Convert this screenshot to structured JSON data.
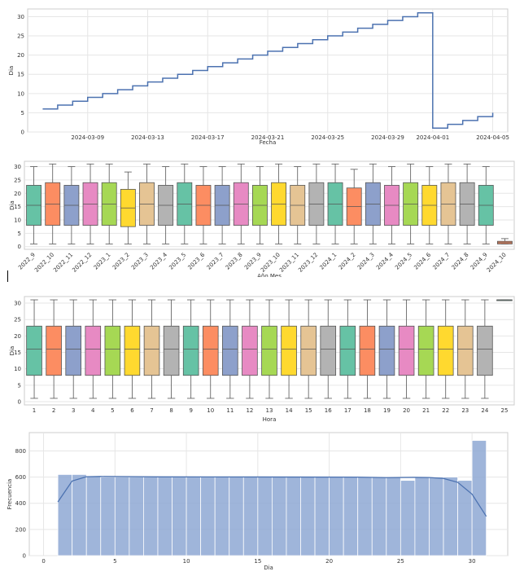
{
  "chart_data": [
    {
      "type": "line",
      "title": "",
      "xlabel": "Fecha",
      "ylabel": "Dia",
      "x_ticks": [
        "2024-03-09",
        "2024-03-13",
        "2024-03-17",
        "2024-03-21",
        "2024-03-25",
        "2024-03-29",
        "2024-04-01",
        "2024-04-05"
      ],
      "y_ticks": [
        "0",
        "5",
        "10",
        "15",
        "20",
        "25",
        "30"
      ],
      "x_range": [
        "2024-03-05",
        "2024-04-06"
      ],
      "ylim": [
        0,
        32
      ],
      "grid": true,
      "series": [
        {
          "x": [
            "2024-03-06",
            "2024-03-07",
            "2024-03-08",
            "2024-03-09",
            "2024-03-10",
            "2024-03-11",
            "2024-03-12",
            "2024-03-13",
            "2024-03-14",
            "2024-03-15",
            "2024-03-16",
            "2024-03-17",
            "2024-03-18",
            "2024-03-19",
            "2024-03-20",
            "2024-03-21",
            "2024-03-22",
            "2024-03-23",
            "2024-03-24",
            "2024-03-25",
            "2024-03-26",
            "2024-03-27",
            "2024-03-28",
            "2024-03-29",
            "2024-03-30",
            "2024-03-31",
            "2024-04-01",
            "2024-04-02",
            "2024-04-03",
            "2024-04-04",
            "2024-04-05"
          ],
          "y": [
            6,
            7,
            8,
            9,
            10,
            11,
            12,
            13,
            14,
            15,
            16,
            17,
            18,
            19,
            20,
            21,
            22,
            23,
            24,
            25,
            26,
            27,
            28,
            29,
            30,
            31,
            1,
            2,
            3,
            4,
            5
          ]
        }
      ]
    },
    {
      "type": "box",
      "title": "",
      "xlabel": "Año Mes",
      "ylabel": "Dia",
      "ylim": [
        -1,
        32
      ],
      "y_ticks": [
        "0",
        "5",
        "10",
        "15",
        "20",
        "25",
        "30"
      ],
      "grid": true,
      "categories": [
        "2022_9",
        "2022_10",
        "2022_11",
        "2022_12",
        "2023_1",
        "2023_2",
        "2023_3",
        "2023_4",
        "2023_5",
        "2023_6",
        "2023_7",
        "2023_8",
        "2023_9",
        "2023_10",
        "2023_11",
        "2023_12",
        "2024_1",
        "2024_2",
        "2024_3",
        "2024_4",
        "2024_5",
        "2024_6",
        "2024_7",
        "2024_8",
        "2024_9",
        "2024_10"
      ],
      "colors": [
        "#66c2a5",
        "#fc8d62",
        "#8da0cb",
        "#e78ac3",
        "#a6d854",
        "#ffd92f",
        "#e5c494",
        "#b3b3b3"
      ],
      "boxes": [
        {
          "min": 1,
          "q1": 8,
          "median": 15.5,
          "q3": 23,
          "max": 30
        },
        {
          "min": 1,
          "q1": 8,
          "median": 16,
          "q3": 24,
          "max": 31
        },
        {
          "min": 1,
          "q1": 8,
          "median": 15.5,
          "q3": 23,
          "max": 30
        },
        {
          "min": 1,
          "q1": 8,
          "median": 16,
          "q3": 24,
          "max": 31
        },
        {
          "min": 1,
          "q1": 8,
          "median": 16,
          "q3": 24,
          "max": 31
        },
        {
          "min": 1,
          "q1": 7.5,
          "median": 14.5,
          "q3": 21.5,
          "max": 28
        },
        {
          "min": 1,
          "q1": 8,
          "median": 16,
          "q3": 24,
          "max": 31
        },
        {
          "min": 1,
          "q1": 8,
          "median": 15.5,
          "q3": 23,
          "max": 30
        },
        {
          "min": 1,
          "q1": 8,
          "median": 16,
          "q3": 24,
          "max": 31
        },
        {
          "min": 1,
          "q1": 8,
          "median": 15.5,
          "q3": 23,
          "max": 30
        },
        {
          "min": 1,
          "q1": 8,
          "median": 15.5,
          "q3": 23,
          "max": 30
        },
        {
          "min": 1,
          "q1": 8,
          "median": 16,
          "q3": 24,
          "max": 31
        },
        {
          "min": 1,
          "q1": 8,
          "median": 15.5,
          "q3": 23,
          "max": 30
        },
        {
          "min": 1,
          "q1": 8,
          "median": 16,
          "q3": 24,
          "max": 31
        },
        {
          "min": 1,
          "q1": 8,
          "median": 15.5,
          "q3": 23,
          "max": 30
        },
        {
          "min": 1,
          "q1": 8,
          "median": 16,
          "q3": 24,
          "max": 31
        },
        {
          "min": 1,
          "q1": 8,
          "median": 16,
          "q3": 24,
          "max": 31
        },
        {
          "min": 1,
          "q1": 8,
          "median": 15,
          "q3": 22,
          "max": 29
        },
        {
          "min": 1,
          "q1": 8,
          "median": 16,
          "q3": 24,
          "max": 31
        },
        {
          "min": 1,
          "q1": 8,
          "median": 15.5,
          "q3": 23,
          "max": 30
        },
        {
          "min": 1,
          "q1": 8,
          "median": 16,
          "q3": 24,
          "max": 31
        },
        {
          "min": 1,
          "q1": 8,
          "median": 15.5,
          "q3": 23,
          "max": 30
        },
        {
          "min": 1,
          "q1": 8,
          "median": 16,
          "q3": 24,
          "max": 31
        },
        {
          "min": 1,
          "q1": 8,
          "median": 16,
          "q3": 24,
          "max": 31
        },
        {
          "min": 1,
          "q1": 8,
          "median": 15.5,
          "q3": 23,
          "max": 30
        },
        {
          "min": 1,
          "q1": 1,
          "median": 1.5,
          "q3": 2,
          "max": 3
        }
      ]
    },
    {
      "type": "box",
      "title": "",
      "xlabel": "Hora",
      "ylabel": "Dia",
      "ylim": [
        -1,
        32
      ],
      "y_ticks": [
        "0",
        "5",
        "10",
        "15",
        "20",
        "25",
        "30"
      ],
      "grid": true,
      "categories": [
        "1",
        "2",
        "3",
        "4",
        "5",
        "6",
        "7",
        "8",
        "9",
        "10",
        "11",
        "12",
        "13",
        "14",
        "15",
        "16",
        "17",
        "18",
        "19",
        "20",
        "21",
        "22",
        "23",
        "24",
        "25"
      ],
      "colors": [
        "#66c2a5",
        "#fc8d62",
        "#8da0cb",
        "#e78ac3",
        "#a6d854",
        "#ffd92f",
        "#e5c494",
        "#b3b3b3"
      ],
      "boxes": [
        {
          "min": 1,
          "q1": 8,
          "median": 16,
          "q3": 23,
          "max": 31
        },
        {
          "min": 1,
          "q1": 8,
          "median": 16,
          "q3": 23,
          "max": 31
        },
        {
          "min": 1,
          "q1": 8,
          "median": 16,
          "q3": 23,
          "max": 31
        },
        {
          "min": 1,
          "q1": 8,
          "median": 16,
          "q3": 23,
          "max": 31
        },
        {
          "min": 1,
          "q1": 8,
          "median": 16,
          "q3": 23,
          "max": 31
        },
        {
          "min": 1,
          "q1": 8,
          "median": 16,
          "q3": 23,
          "max": 31
        },
        {
          "min": 1,
          "q1": 8,
          "median": 16,
          "q3": 23,
          "max": 31
        },
        {
          "min": 1,
          "q1": 8,
          "median": 16,
          "q3": 23,
          "max": 31
        },
        {
          "min": 1,
          "q1": 8,
          "median": 16,
          "q3": 23,
          "max": 31
        },
        {
          "min": 1,
          "q1": 8,
          "median": 16,
          "q3": 23,
          "max": 31
        },
        {
          "min": 1,
          "q1": 8,
          "median": 16,
          "q3": 23,
          "max": 31
        },
        {
          "min": 1,
          "q1": 8,
          "median": 16,
          "q3": 23,
          "max": 31
        },
        {
          "min": 1,
          "q1": 8,
          "median": 16,
          "q3": 23,
          "max": 31
        },
        {
          "min": 1,
          "q1": 8,
          "median": 16,
          "q3": 23,
          "max": 31
        },
        {
          "min": 1,
          "q1": 8,
          "median": 16,
          "q3": 23,
          "max": 31
        },
        {
          "min": 1,
          "q1": 8,
          "median": 16,
          "q3": 23,
          "max": 31
        },
        {
          "min": 1,
          "q1": 8,
          "median": 16,
          "q3": 23,
          "max": 31
        },
        {
          "min": 1,
          "q1": 8,
          "median": 16,
          "q3": 23,
          "max": 31
        },
        {
          "min": 1,
          "q1": 8,
          "median": 16,
          "q3": 23,
          "max": 31
        },
        {
          "min": 1,
          "q1": 8,
          "median": 16,
          "q3": 23,
          "max": 31
        },
        {
          "min": 1,
          "q1": 8,
          "median": 16,
          "q3": 23,
          "max": 31
        },
        {
          "min": 1,
          "q1": 8,
          "median": 16,
          "q3": 23,
          "max": 31
        },
        {
          "min": 1,
          "q1": 8,
          "median": 16,
          "q3": 23,
          "max": 31
        },
        {
          "min": 1,
          "q1": 8,
          "median": 16,
          "q3": 23,
          "max": 31
        },
        {
          "min": 31,
          "q1": 31,
          "median": 31,
          "q3": 31,
          "max": 31
        }
      ]
    },
    {
      "type": "histogram",
      "title": "",
      "xlabel": "Dia",
      "ylabel": "Frecuencia",
      "xlim": [
        -1,
        32.5
      ],
      "ylim": [
        0,
        940
      ],
      "x_ticks": [
        "0",
        "5",
        "10",
        "15",
        "20",
        "25",
        "30"
      ],
      "y_ticks": [
        "0",
        "200",
        "400",
        "600",
        "800"
      ],
      "grid": true,
      "bin_start": 1,
      "bin_width": 1,
      "values": [
        620,
        620,
        605,
        600,
        600,
        600,
        600,
        600,
        600,
        600,
        600,
        600,
        600,
        600,
        600,
        600,
        600,
        600,
        600,
        600,
        600,
        600,
        600,
        600,
        575,
        600,
        600,
        600,
        575,
        880
      ],
      "kde": [
        [
          1,
          410
        ],
        [
          2,
          570
        ],
        [
          3,
          603
        ],
        [
          4,
          605
        ],
        [
          8,
          602
        ],
        [
          15,
          601
        ],
        [
          22,
          600
        ],
        [
          24,
          596
        ],
        [
          26,
          598
        ],
        [
          27,
          597
        ],
        [
          28,
          590
        ],
        [
          29,
          560
        ],
        [
          30,
          470
        ],
        [
          31,
          300
        ]
      ]
    }
  ]
}
